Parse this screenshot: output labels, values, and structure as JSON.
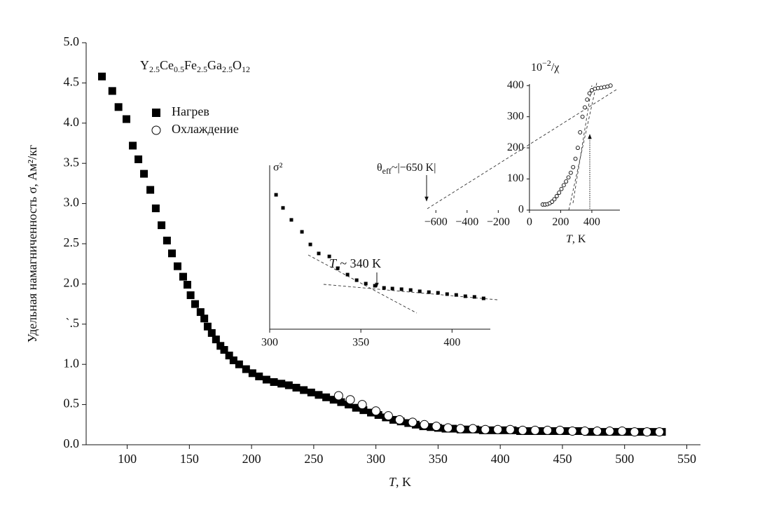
{
  "chart_data": [
    {
      "type": "scatter",
      "title": [
        "Y",
        "2.5",
        "Ce",
        "0.5",
        "Fe",
        "2.5",
        "Ga",
        "2.5",
        "O",
        "12"
      ],
      "x_label": [
        "T",
        ", K"
      ],
      "y_label": "Удельная намагниченность σ, Ам²/кг",
      "xlim": [
        67,
        561
      ],
      "ylim": [
        0,
        5
      ],
      "xticks": [
        100,
        150,
        200,
        250,
        300,
        350,
        400,
        450,
        500,
        550
      ],
      "yticks": [
        {
          "value": 0,
          "label": "0.0"
        },
        0.5,
        {
          "value": 1,
          "label": "1.0"
        },
        {
          "value": 1.5,
          "label": "`.5"
        },
        {
          "value": 2,
          "label": "2.0"
        },
        2.5,
        {
          "value": 3,
          "label": "3.0"
        },
        3.5,
        {
          "value": 4,
          "label": "4.0"
        },
        4.5,
        {
          "value": 5,
          "label": "5.0"
        }
      ],
      "grid": false,
      "legend": "upper left",
      "series": [
        {
          "name": "Нагрев",
          "color": "#000000",
          "marker": "square",
          "x": [
            79.7,
            88,
            93,
            99.4,
            104.5,
            109,
            113.5,
            118.6,
            123,
            127.6,
            132,
            136,
            140.5,
            145,
            148.4,
            151,
            154.6,
            159,
            162,
            164.7,
            168,
            171.4,
            175,
            178,
            182,
            185.5,
            190,
            195.6,
            200.7,
            206,
            212,
            218,
            224,
            230,
            236,
            242,
            248,
            254,
            260,
            266,
            272,
            278,
            284,
            290,
            296,
            302,
            308,
            314,
            320,
            326,
            332,
            338,
            344,
            350,
            356,
            362,
            368,
            374,
            380,
            386,
            392,
            398,
            404,
            410,
            416,
            422,
            428,
            434,
            440,
            446,
            452,
            458,
            464,
            470,
            476,
            482,
            488,
            494,
            500,
            506,
            512,
            518,
            524,
            530
          ],
          "values": [
            4.58,
            4.4,
            4.2,
            4.05,
            3.72,
            3.55,
            3.37,
            3.17,
            2.94,
            2.73,
            2.54,
            2.38,
            2.22,
            2.09,
            1.99,
            1.86,
            1.75,
            1.65,
            1.57,
            1.47,
            1.39,
            1.31,
            1.23,
            1.18,
            1.11,
            1.05,
            1.0,
            0.94,
            0.89,
            0.85,
            0.81,
            0.78,
            0.76,
            0.74,
            0.71,
            0.68,
            0.65,
            0.62,
            0.59,
            0.56,
            0.53,
            0.5,
            0.46,
            0.43,
            0.4,
            0.37,
            0.34,
            0.31,
            0.29,
            0.27,
            0.25,
            0.23,
            0.22,
            0.21,
            0.2,
            0.2,
            0.19,
            0.19,
            0.19,
            0.18,
            0.18,
            0.18,
            0.18,
            0.18,
            0.17,
            0.17,
            0.17,
            0.17,
            0.17,
            0.17,
            0.17,
            0.17,
            0.17,
            0.16,
            0.16,
            0.16,
            0.16,
            0.16,
            0.16,
            0.16,
            0.16,
            0.16,
            0.16,
            0.16
          ]
        },
        {
          "name": "Охлаждение",
          "color": "#000000",
          "marker": "circle-open",
          "x": [
            270,
            279.4,
            289,
            300,
            310,
            319,
            329.5,
            339,
            348.6,
            358,
            368,
            378,
            388,
            398,
            408,
            418,
            428,
            438,
            448,
            458,
            468,
            478,
            488,
            498,
            508,
            518,
            528
          ],
          "values": [
            0.61,
            0.56,
            0.5,
            0.42,
            0.36,
            0.31,
            0.28,
            0.25,
            0.23,
            0.21,
            0.2,
            0.2,
            0.19,
            0.19,
            0.19,
            0.18,
            0.18,
            0.18,
            0.18,
            0.17,
            0.17,
            0.17,
            0.17,
            0.17,
            0.16,
            0.16,
            0.16
          ]
        }
      ]
    },
    {
      "type": "scatter",
      "y_label": "σ²",
      "annotation": [
        "T",
        "c",
        "~ 340 K"
      ],
      "xlim": [
        300,
        421
      ],
      "ylim": [
        0,
        100
      ],
      "xticks": [
        300,
        350,
        400
      ],
      "series": [
        {
          "color": "#000000",
          "marker": "small-square",
          "x": [
            303.5,
            307.3,
            311.9,
            317.7,
            322.3,
            326.9,
            332.7,
            337.3,
            342.7,
            347.7,
            352.7,
            357.7,
            362.7,
            367.3,
            372.3,
            377.3,
            382.3,
            387.3,
            392.3,
            397.3,
            402.3,
            407.3,
            412.3,
            417.3
          ],
          "values": [
            82,
            74,
            66.7,
            59.4,
            51.7,
            46.2,
            44.4,
            37.2,
            33.3,
            29.9,
            27.8,
            26.5,
            25.2,
            24.8,
            24.4,
            23.9,
            23.1,
            22.6,
            22.2,
            21.4,
            20.9,
            20.1,
            19.7,
            18.8
          ]
        }
      ]
    },
    {
      "type": "scatter",
      "title": [
        "10",
        "−2",
        "/χ"
      ],
      "x_label": [
        "T",
        ", K"
      ],
      "annotation": [
        "θ",
        "eff",
        "~|−650 K|"
      ],
      "xlim": [
        -700,
        580
      ],
      "ylim": [
        0,
        405
      ],
      "xticks": [
        {
          "value": -600,
          "label": "−600"
        },
        {
          "value": -400,
          "label": "−400"
        },
        {
          "value": -200,
          "label": "−200"
        },
        0,
        200,
        400
      ],
      "yticks": [
        0,
        100,
        200,
        300,
        400
      ],
      "series": [
        {
          "color": "#000000",
          "marker": "small-circle-open",
          "x": [
            85,
            100,
            115,
            130,
            145,
            160,
            175,
            190,
            205,
            220,
            235,
            250,
            265,
            280,
            295,
            310,
            325,
            340,
            355,
            370,
            385,
            400,
            420,
            440,
            460,
            480,
            500,
            520
          ],
          "values": [
            18,
            18,
            19,
            22,
            27,
            35,
            45,
            56,
            68,
            80,
            92,
            105,
            120,
            138,
            165,
            200,
            250,
            300,
            330,
            355,
            375,
            385,
            390,
            392,
            393,
            395,
            397,
            400
          ]
        }
      ]
    }
  ]
}
